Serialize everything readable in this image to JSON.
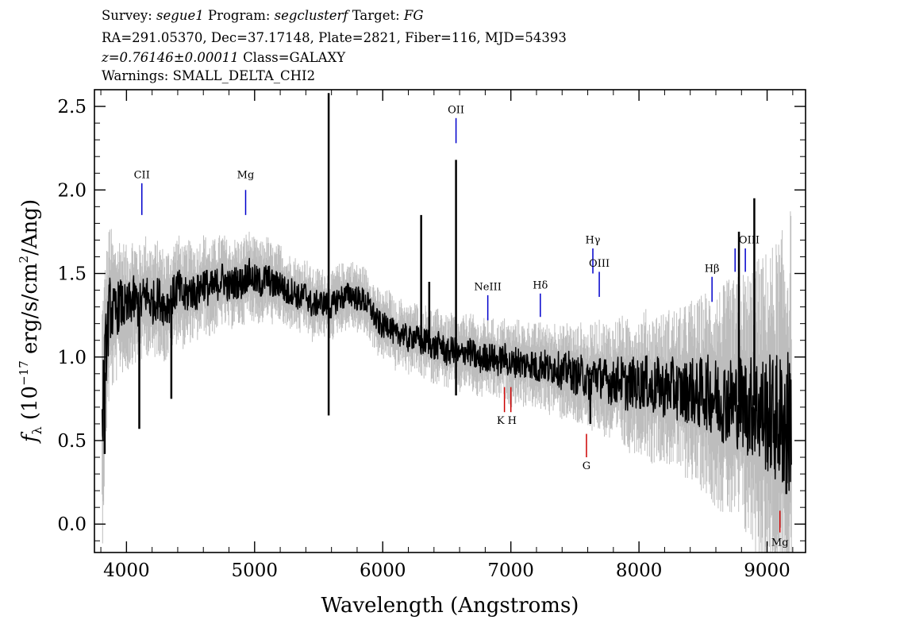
{
  "header": {
    "line1": {
      "survey_label": "Survey:",
      "survey": "segue1",
      "program_label": "Program:",
      "program": "segclusterf",
      "target_label": "Target:",
      "target": "FG"
    },
    "line2": "RA=291.05370, Dec=37.17148, Plate=2821, Fiber=116, MJD=54393",
    "line3": {
      "z": "z=0.76146±0.00011",
      "class": "Class=GALAXY"
    },
    "line4": "Warnings: SMALL_DELTA_CHI2"
  },
  "chart_data": {
    "type": "line",
    "xlabel": "Wavelength (Angstroms)",
    "ylabel_parts": {
      "f": "f",
      "sub": "λ",
      "open": " (10",
      "exp": "−17",
      "mid": " erg/s/cm",
      "exp2": "2",
      "close": "/Ang)"
    },
    "xlim": [
      3750,
      9300
    ],
    "ylim": [
      -0.17,
      2.6
    ],
    "xticks": [
      4000,
      5000,
      6000,
      7000,
      8000,
      9000
    ],
    "yticks": [
      0.0,
      0.5,
      1.0,
      1.5,
      2.0,
      2.5
    ],
    "ytick_labels": [
      "0.0",
      "0.5",
      "1.0",
      "1.5",
      "2.0",
      "2.5"
    ],
    "series": [
      {
        "role": "flux",
        "color": "#000000",
        "x": [
          3810,
          3840,
          3870,
          3900,
          3950,
          4000,
          4050,
          4100,
          4150,
          4200,
          4250,
          4300,
          4350,
          4400,
          4450,
          4500,
          4550,
          4600,
          4650,
          4700,
          4750,
          4800,
          4850,
          4900,
          4950,
          5000,
          5050,
          5100,
          5150,
          5200,
          5250,
          5300,
          5350,
          5400,
          5450,
          5500,
          5550,
          5600,
          5650,
          5700,
          5750,
          5800,
          5850,
          5900,
          5950,
          6000,
          6050,
          6100,
          6150,
          6200,
          6250,
          6300,
          6350,
          6400,
          6450,
          6500,
          6550,
          6600,
          6650,
          6700,
          6750,
          6800,
          6850,
          6900,
          6950,
          7000,
          7050,
          7100,
          7150,
          7200,
          7250,
          7300,
          7350,
          7400,
          7450,
          7500,
          7550,
          7600,
          7650,
          7700,
          7750,
          7800,
          7850,
          7900,
          7950,
          8000,
          8050,
          8100,
          8150,
          8200,
          8250,
          8300,
          8350,
          8400,
          8450,
          8500,
          8550,
          8600,
          8650,
          8700,
          8750,
          8800,
          8850,
          8900,
          8950,
          9000,
          9050,
          9100,
          9150,
          9190
        ],
        "y": [
          0.62,
          1.05,
          1.3,
          1.25,
          1.32,
          1.28,
          1.35,
          1.3,
          1.38,
          1.32,
          1.36,
          1.3,
          1.34,
          1.42,
          1.35,
          1.4,
          1.38,
          1.45,
          1.4,
          1.43,
          1.47,
          1.42,
          1.45,
          1.44,
          1.5,
          1.46,
          1.44,
          1.48,
          1.42,
          1.45,
          1.38,
          1.4,
          1.35,
          1.38,
          1.3,
          1.33,
          1.32,
          1.3,
          1.35,
          1.36,
          1.38,
          1.35,
          1.34,
          1.3,
          1.22,
          1.18,
          1.2,
          1.12,
          1.15,
          1.1,
          1.13,
          1.08,
          1.1,
          1.05,
          1.08,
          1.02,
          1.05,
          1.0,
          1.04,
          1.02,
          0.98,
          1.0,
          1.0,
          0.97,
          1.0,
          0.95,
          0.98,
          0.95,
          0.97,
          0.93,
          0.96,
          0.92,
          0.95,
          0.9,
          0.93,
          0.88,
          0.9,
          0.85,
          0.9,
          0.88,
          0.86,
          0.84,
          0.88,
          0.82,
          0.85,
          0.83,
          0.86,
          0.8,
          0.84,
          0.8,
          0.83,
          0.8,
          0.78,
          0.82,
          0.76,
          0.8,
          0.78,
          0.76,
          0.74,
          0.75,
          0.72,
          0.74,
          0.7,
          0.71,
          0.68,
          0.66,
          0.64,
          0.62,
          0.6,
          0.65
        ]
      },
      {
        "role": "error-band",
        "color": "#bdbdbd",
        "amplitude": [
          0.55,
          0.4,
          0.35,
          0.3,
          0.28,
          0.26,
          0.26,
          0.25,
          0.24,
          0.24,
          0.23,
          0.23,
          0.22,
          0.22,
          0.21,
          0.21,
          0.2,
          0.2,
          0.2,
          0.19,
          0.19,
          0.18,
          0.18,
          0.18,
          0.18,
          0.17,
          0.17,
          0.17,
          0.16,
          0.16,
          0.16,
          0.15,
          0.15,
          0.15,
          0.15,
          0.14,
          0.14,
          0.14,
          0.14,
          0.14,
          0.14,
          0.14,
          0.14,
          0.14,
          0.14,
          0.14,
          0.14,
          0.14,
          0.14,
          0.14,
          0.14,
          0.15,
          0.15,
          0.15,
          0.15,
          0.15,
          0.15,
          0.15,
          0.15,
          0.16,
          0.16,
          0.16,
          0.16,
          0.16,
          0.16,
          0.17,
          0.17,
          0.17,
          0.17,
          0.18,
          0.18,
          0.18,
          0.19,
          0.19,
          0.2,
          0.2,
          0.21,
          0.21,
          0.22,
          0.23,
          0.24,
          0.25,
          0.26,
          0.27,
          0.28,
          0.28,
          0.29,
          0.3,
          0.3,
          0.31,
          0.32,
          0.33,
          0.35,
          0.36,
          0.38,
          0.4,
          0.42,
          0.44,
          0.46,
          0.48,
          0.5,
          0.52,
          0.55,
          0.58,
          0.62,
          0.66,
          0.7,
          0.75,
          0.8,
          0.85
        ]
      }
    ],
    "spikes": [
      {
        "x": 3830,
        "y": 0.42
      },
      {
        "x": 4100,
        "y": 0.57
      },
      {
        "x": 4350,
        "y": 0.75
      },
      {
        "x": 5578,
        "y": 2.58
      },
      {
        "x": 5578,
        "y": 0.65
      },
      {
        "x": 6300,
        "y": 1.85
      },
      {
        "x": 6363,
        "y": 1.45
      },
      {
        "x": 6572,
        "y": 2.18
      },
      {
        "x": 6572,
        "y": 0.77
      },
      {
        "x": 7620,
        "y": 0.6
      },
      {
        "x": 8780,
        "y": 1.75
      },
      {
        "x": 8900,
        "y": 1.95
      },
      {
        "x": 9150,
        "y": 0.18
      }
    ],
    "annotations": [
      {
        "label": "CII",
        "x": 4120,
        "line_top": 2.04,
        "line_bot": 1.85,
        "label_y": 2.07,
        "color": "#0000cc"
      },
      {
        "label": "Mg",
        "x": 4930,
        "line_top": 2.0,
        "line_bot": 1.85,
        "label_y": 2.07,
        "color": "#0000cc"
      },
      {
        "label": "OII",
        "x": 6572,
        "line_top": 2.43,
        "line_bot": 2.28,
        "label_y": 2.46,
        "color": "#0000cc"
      },
      {
        "label": "NeIII",
        "x": 6820,
        "line_top": 1.37,
        "line_bot": 1.22,
        "label_y": 1.4,
        "color": "#0000cc"
      },
      {
        "label": "Hδ",
        "x": 7230,
        "line_top": 1.38,
        "line_bot": 1.24,
        "label_y": 1.41,
        "color": "#0000cc"
      },
      {
        "label": "Hγ",
        "x": 7640,
        "line_top": 1.65,
        "line_bot": 1.5,
        "label_y": 1.68,
        "color": "#0000cc"
      },
      {
        "label": "OIII",
        "x": 7690,
        "line_top": 1.51,
        "line_bot": 1.36,
        "label_y": 1.54,
        "color": "#0000cc"
      },
      {
        "label": "Hβ",
        "x": 8570,
        "line_top": 1.48,
        "line_bot": 1.33,
        "label_y": 1.51,
        "color": "#0000cc"
      },
      {
        "label": "OIII",
        "x": 8750,
        "line_top": 1.65,
        "line_bot": 1.51,
        "label_y": 1.68,
        "color": "#0000cc",
        "label_x": 8860
      },
      {
        "label": "",
        "x": 8830,
        "line_top": 1.65,
        "line_bot": 1.51,
        "label_y": 1.68,
        "color": "#0000cc"
      },
      {
        "label": "K",
        "x": 6950,
        "line_top": 0.82,
        "line_bot": 0.67,
        "label_y": 0.6,
        "color": "#cc0000",
        "label_x": 6920,
        "below": true
      },
      {
        "label": "H",
        "x": 7000,
        "line_top": 0.82,
        "line_bot": 0.67,
        "label_y": 0.6,
        "color": "#cc0000",
        "label_x": 7010,
        "below": true
      },
      {
        "label": "G",
        "x": 7590,
        "line_top": 0.54,
        "line_bot": 0.4,
        "label_y": 0.33,
        "color": "#cc0000",
        "below": true
      },
      {
        "label": "Mg",
        "x": 9100,
        "line_top": 0.08,
        "line_bot": -0.05,
        "label_y": -0.13,
        "color": "#cc0000",
        "below": true
      }
    ]
  }
}
